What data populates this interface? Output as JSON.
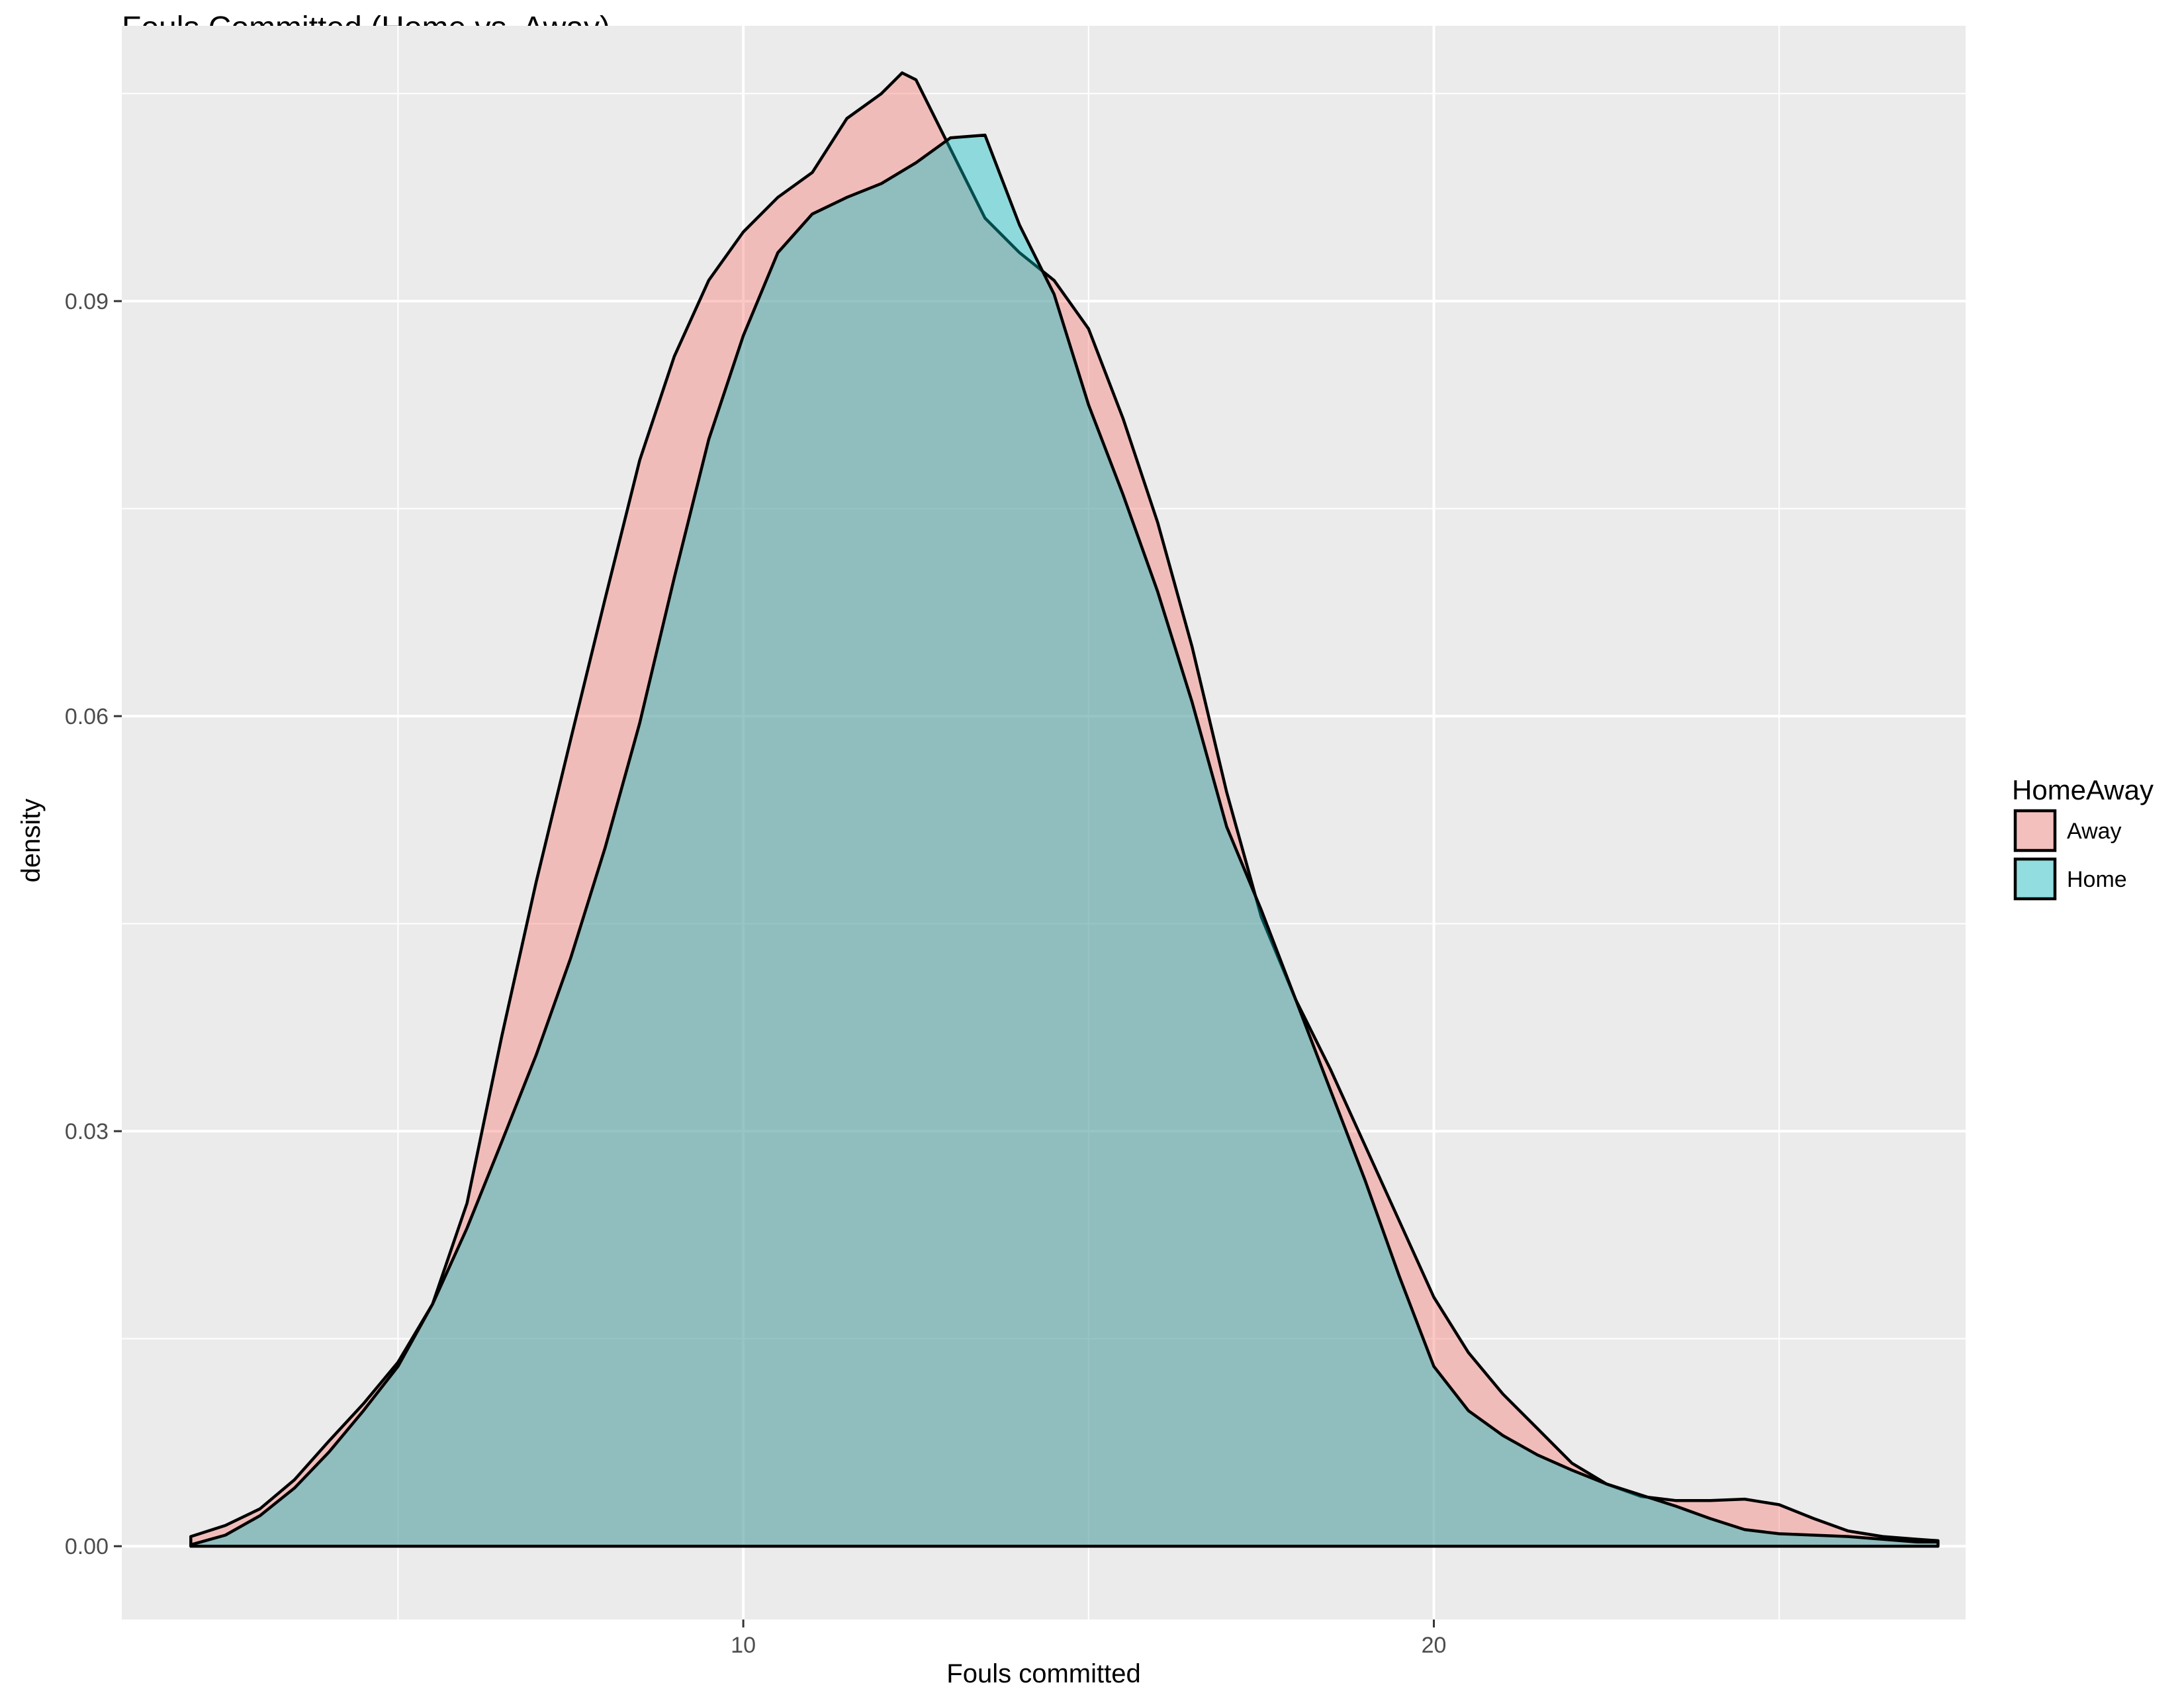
{
  "chart_data": {
    "type": "area",
    "title": "Fouls Committed (Home vs. Away)",
    "xlabel": "Fouls committed",
    "ylabel": "density",
    "xlim": [
      1.0,
      27.7
    ],
    "ylim": [
      -0.0053,
      0.1099
    ],
    "x_ticks": [
      10,
      20
    ],
    "x_minor_ticks": [
      5,
      15,
      25
    ],
    "y_ticks": [
      0.0,
      0.03,
      0.06,
      0.09
    ],
    "y_tick_labels": [
      "0.00",
      "0.03",
      "0.06",
      "0.09"
    ],
    "y_minor_ticks": [
      0.015,
      0.045,
      0.075,
      0.105
    ],
    "grid": true,
    "legend": {
      "title": "HomeAway",
      "position": "right"
    },
    "colors": {
      "panel": "#EBEBEB",
      "grid": "#FFFFFF",
      "Away": "#F8766D",
      "Home": "#00BFC4",
      "outline": "#000000"
    },
    "fill_opacity": 0.4,
    "series": [
      {
        "name": "Away",
        "color": "#F8766D",
        "points": [
          [
            2.0,
            0.0007
          ],
          [
            2.5,
            0.0015
          ],
          [
            3.0,
            0.0027
          ],
          [
            3.5,
            0.0048
          ],
          [
            4.0,
            0.0076
          ],
          [
            4.5,
            0.0103
          ],
          [
            5.0,
            0.0133
          ],
          [
            5.5,
            0.0175
          ],
          [
            6.0,
            0.0248
          ],
          [
            6.5,
            0.0368
          ],
          [
            7.0,
            0.048
          ],
          [
            7.5,
            0.0583
          ],
          [
            8.0,
            0.0685
          ],
          [
            8.5,
            0.0785
          ],
          [
            9.0,
            0.086
          ],
          [
            9.5,
            0.0915
          ],
          [
            10.0,
            0.095
          ],
          [
            10.5,
            0.0975
          ],
          [
            11.0,
            0.0993
          ],
          [
            11.5,
            0.1032
          ],
          [
            12.0,
            0.105
          ],
          [
            12.3,
            0.1065
          ],
          [
            12.5,
            0.106
          ],
          [
            13.0,
            0.101
          ],
          [
            13.5,
            0.096
          ],
          [
            14.0,
            0.0935
          ],
          [
            14.5,
            0.0915
          ],
          [
            15.0,
            0.088
          ],
          [
            15.5,
            0.0815
          ],
          [
            16.0,
            0.074
          ],
          [
            16.5,
            0.065
          ],
          [
            17.0,
            0.0545
          ],
          [
            17.5,
            0.0455
          ],
          [
            18.0,
            0.0395
          ],
          [
            18.5,
            0.0345
          ],
          [
            19.0,
            0.029
          ],
          [
            19.5,
            0.0235
          ],
          [
            20.0,
            0.018
          ],
          [
            20.5,
            0.014
          ],
          [
            21.0,
            0.011
          ],
          [
            21.5,
            0.0085
          ],
          [
            22.0,
            0.006
          ],
          [
            22.5,
            0.0045
          ],
          [
            23.0,
            0.0036
          ],
          [
            23.5,
            0.0033
          ],
          [
            24.0,
            0.0033
          ],
          [
            24.5,
            0.0034
          ],
          [
            25.0,
            0.003
          ],
          [
            25.5,
            0.002
          ],
          [
            26.0,
            0.0011
          ],
          [
            26.5,
            0.0007
          ],
          [
            27.0,
            0.0005
          ],
          [
            27.3,
            0.0004
          ]
        ]
      },
      {
        "name": "Home",
        "color": "#00BFC4",
        "points": [
          [
            2.0,
            0.0001
          ],
          [
            2.5,
            0.0008
          ],
          [
            3.0,
            0.0022
          ],
          [
            3.5,
            0.0042
          ],
          [
            4.0,
            0.0068
          ],
          [
            4.5,
            0.0098
          ],
          [
            5.0,
            0.013
          ],
          [
            5.5,
            0.0175
          ],
          [
            6.0,
            0.023
          ],
          [
            6.5,
            0.0292
          ],
          [
            7.0,
            0.0355
          ],
          [
            7.5,
            0.0425
          ],
          [
            8.0,
            0.0505
          ],
          [
            8.5,
            0.0595
          ],
          [
            9.0,
            0.07
          ],
          [
            9.5,
            0.08
          ],
          [
            10.0,
            0.0875
          ],
          [
            10.5,
            0.0935
          ],
          [
            11.0,
            0.0963
          ],
          [
            11.5,
            0.0975
          ],
          [
            12.0,
            0.0985
          ],
          [
            12.5,
            0.1
          ],
          [
            13.0,
            0.1018
          ],
          [
            13.5,
            0.102
          ],
          [
            14.0,
            0.0955
          ],
          [
            14.5,
            0.0905
          ],
          [
            15.0,
            0.0825
          ],
          [
            15.5,
            0.076
          ],
          [
            16.0,
            0.069
          ],
          [
            16.5,
            0.061
          ],
          [
            17.0,
            0.052
          ],
          [
            17.5,
            0.046
          ],
          [
            18.0,
            0.0395
          ],
          [
            18.5,
            0.033
          ],
          [
            19.0,
            0.0265
          ],
          [
            19.5,
            0.0195
          ],
          [
            20.0,
            0.013
          ],
          [
            20.5,
            0.0098
          ],
          [
            21.0,
            0.008
          ],
          [
            21.5,
            0.0066
          ],
          [
            22.0,
            0.0055
          ],
          [
            22.5,
            0.0045
          ],
          [
            23.0,
            0.0037
          ],
          [
            23.5,
            0.0029
          ],
          [
            24.0,
            0.002
          ],
          [
            24.5,
            0.0012
          ],
          [
            25.0,
            0.0009
          ],
          [
            25.5,
            0.0008
          ],
          [
            26.0,
            0.0007
          ],
          [
            26.5,
            0.0005
          ],
          [
            27.0,
            0.0003
          ],
          [
            27.3,
            0.0003
          ]
        ]
      }
    ]
  }
}
